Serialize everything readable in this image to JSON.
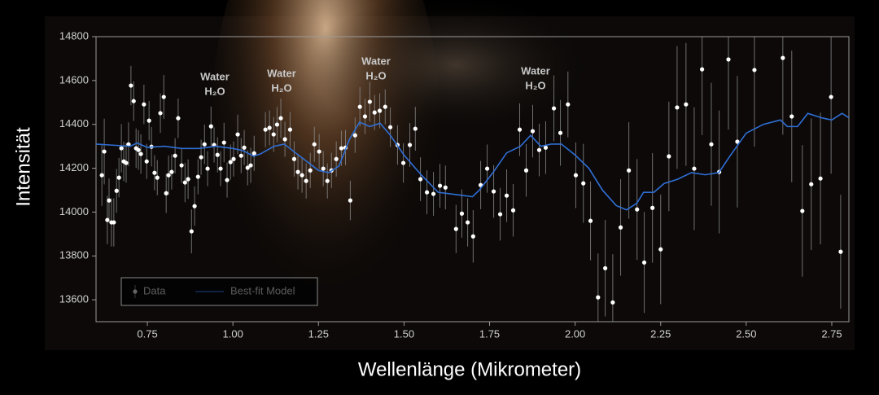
{
  "chart_data": {
    "type": "scatter",
    "xlabel": "Wellenlänge (Mikrometer)",
    "ylabel": "Intensität",
    "xlim": [
      0.6,
      2.8
    ],
    "ylim": [
      13500,
      14800
    ],
    "xticks": [
      {
        "value": 0.75,
        "label": "0.75"
      },
      {
        "value": 1.0,
        "label": "1.00"
      },
      {
        "value": 1.25,
        "label": "1.25"
      },
      {
        "value": 1.5,
        "label": "1.50"
      },
      {
        "value": 1.75,
        "label": "1.75"
      },
      {
        "value": 2.0,
        "label": "2.00"
      },
      {
        "value": 2.25,
        "label": "2.25"
      },
      {
        "value": 2.5,
        "label": "2.50"
      },
      {
        "value": 2.75,
        "label": "2.75"
      }
    ],
    "yticks": [
      13600,
      13800,
      14000,
      14200,
      14400,
      14600,
      14800
    ],
    "legend": "lower left",
    "annotations": [
      {
        "label": "Water",
        "formula": "H₂O"
      },
      {
        "label": "Water",
        "formula": "H₂O"
      },
      {
        "label": "Water",
        "formula": "H₂O"
      },
      {
        "label": "Water",
        "formula": "H₂O"
      }
    ],
    "series": [
      {
        "name": "Data",
        "type": "scatter",
        "color": "#ffffff",
        "error_color": "#8a8a8a",
        "x": [
          0.617,
          0.624,
          0.633,
          0.638,
          0.645,
          0.652,
          0.66,
          0.667,
          0.674,
          0.681,
          0.688,
          0.695,
          0.702,
          0.71,
          0.717,
          0.724,
          0.731,
          0.74,
          0.748,
          0.755,
          0.762,
          0.771,
          0.779,
          0.788,
          0.798,
          0.805,
          0.812,
          0.821,
          0.831,
          0.84,
          0.85,
          0.86,
          0.869,
          0.879,
          0.888,
          0.898,
          0.907,
          0.917,
          0.926,
          0.936,
          0.945,
          0.955,
          0.964,
          0.974,
          0.983,
          0.993,
          1.002,
          1.014,
          1.024,
          1.033,
          1.043,
          1.052,
          1.062,
          1.095,
          1.107,
          1.119,
          1.129,
          1.14,
          1.152,
          1.167,
          1.179,
          1.19,
          1.202,
          1.214,
          1.226,
          1.238,
          1.252,
          1.264,
          1.276,
          1.288,
          1.302,
          1.317,
          1.329,
          1.343,
          1.357,
          1.371,
          1.386,
          1.4,
          1.414,
          1.429,
          1.445,
          1.46,
          1.481,
          1.498,
          1.517,
          1.533,
          1.548,
          1.567,
          1.586,
          1.605,
          1.621,
          1.652,
          1.669,
          1.686,
          1.702,
          1.724,
          1.743,
          1.762,
          1.781,
          1.8,
          1.819,
          1.838,
          1.857,
          1.876,
          1.895,
          1.914,
          1.938,
          1.957,
          1.979,
          2.002,
          2.024,
          2.045,
          2.067,
          2.088,
          2.11,
          2.133,
          2.157,
          2.181,
          2.202,
          2.226,
          2.25,
          2.274,
          2.298,
          2.324,
          2.348,
          2.371,
          2.398,
          2.421,
          2.448,
          2.474,
          2.524,
          2.607,
          2.633,
          2.664,
          2.69,
          2.717,
          2.748,
          2.776
        ],
        "values": [
          14168,
          14276,
          13964,
          14053,
          13953,
          13953,
          14097,
          14157,
          14291,
          14231,
          14224,
          14309,
          14577,
          14506,
          14291,
          14283,
          14265,
          14491,
          14231,
          14417,
          14298,
          14179,
          14157,
          14451,
          14525,
          14086,
          14168,
          14183,
          14257,
          14428,
          14213,
          14135,
          14150,
          13912,
          14027,
          14161,
          14250,
          14309,
          14198,
          14391,
          14306,
          14261,
          14198,
          14317,
          14146,
          14228,
          14242,
          14354,
          14257,
          14294,
          14202,
          14213,
          14268,
          14376,
          14384,
          14354,
          14399,
          14428,
          14332,
          14376,
          14242,
          14183,
          14168,
          14142,
          14190,
          14309,
          14276,
          14198,
          14142,
          14190,
          14242,
          14291,
          14294,
          14053,
          14350,
          14480,
          14436,
          14503,
          14454,
          14462,
          14480,
          14387,
          14306,
          14224,
          14306,
          14380,
          14150,
          14090,
          14083,
          14120,
          14112,
          13923,
          13993,
          13953,
          13889,
          14123,
          14198,
          14094,
          13990,
          14075,
          14008,
          14376,
          14190,
          14369,
          14283,
          14294,
          14473,
          14361,
          14491,
          14168,
          14131,
          13960,
          13611,
          13744,
          13588,
          13930,
          14190,
          14012,
          13770,
          14019,
          13830,
          14254,
          14477,
          14491,
          14198,
          14651,
          14309,
          14183,
          14696,
          14321,
          14648,
          14703,
          14436,
          14005,
          14127,
          14153,
          14525,
          13819
        ],
        "errors": [
          140,
          150,
          110,
          100,
          110,
          110,
          100,
          90,
          110,
          90,
          90,
          100,
          90,
          90,
          90,
          90,
          90,
          90,
          80,
          90,
          90,
          80,
          80,
          90,
          100,
          90,
          90,
          80,
          80,
          90,
          80,
          90,
          90,
          100,
          90,
          80,
          80,
          90,
          80,
          90,
          80,
          80,
          80,
          90,
          80,
          80,
          80,
          90,
          80,
          80,
          80,
          80,
          80,
          80,
          80,
          80,
          80,
          90,
          80,
          80,
          80,
          80,
          80,
          80,
          80,
          80,
          80,
          80,
          80,
          80,
          80,
          80,
          80,
          90,
          80,
          90,
          80,
          90,
          80,
          80,
          80,
          90,
          90,
          90,
          100,
          100,
          100,
          100,
          100,
          100,
          100,
          110,
          110,
          110,
          120,
          110,
          110,
          120,
          120,
          120,
          120,
          120,
          120,
          120,
          120,
          120,
          150,
          150,
          150,
          150,
          180,
          180,
          200,
          220,
          220,
          220,
          220,
          230,
          230,
          250,
          250,
          250,
          280,
          280,
          280,
          300,
          280,
          280,
          320,
          300,
          350,
          350,
          300,
          300,
          300,
          300,
          350,
          260
        ]
      },
      {
        "name": "Best-fit Model",
        "type": "line",
        "color": "#2f6fd6",
        "x": [
          0.6,
          0.7,
          0.72,
          0.75,
          0.8,
          0.85,
          0.9,
          0.95,
          1.0,
          1.03,
          1.06,
          1.08,
          1.12,
          1.15,
          1.2,
          1.25,
          1.28,
          1.31,
          1.34,
          1.37,
          1.4,
          1.43,
          1.46,
          1.5,
          1.55,
          1.6,
          1.65,
          1.7,
          1.72,
          1.76,
          1.8,
          1.84,
          1.87,
          1.9,
          1.93,
          1.96,
          2.0,
          2.04,
          2.08,
          2.12,
          2.15,
          2.18,
          2.2,
          2.23,
          2.26,
          2.3,
          2.34,
          2.38,
          2.42,
          2.45,
          2.5,
          2.55,
          2.6,
          2.62,
          2.65,
          2.68,
          2.72,
          2.75,
          2.78,
          2.8
        ],
        "values": [
          14310,
          14300,
          14315,
          14295,
          14300,
          14290,
          14290,
          14300,
          14290,
          14280,
          14255,
          14265,
          14300,
          14310,
          14250,
          14190,
          14180,
          14210,
          14330,
          14410,
          14390,
          14405,
          14350,
          14260,
          14170,
          14090,
          14080,
          14070,
          14100,
          14180,
          14270,
          14300,
          14350,
          14300,
          14310,
          14310,
          14260,
          14200,
          14100,
          14030,
          14010,
          14040,
          14090,
          14090,
          14130,
          14150,
          14180,
          14170,
          14180,
          14250,
          14360,
          14400,
          14420,
          14390,
          14390,
          14450,
          14430,
          14420,
          14450,
          14430
        ]
      }
    ]
  }
}
